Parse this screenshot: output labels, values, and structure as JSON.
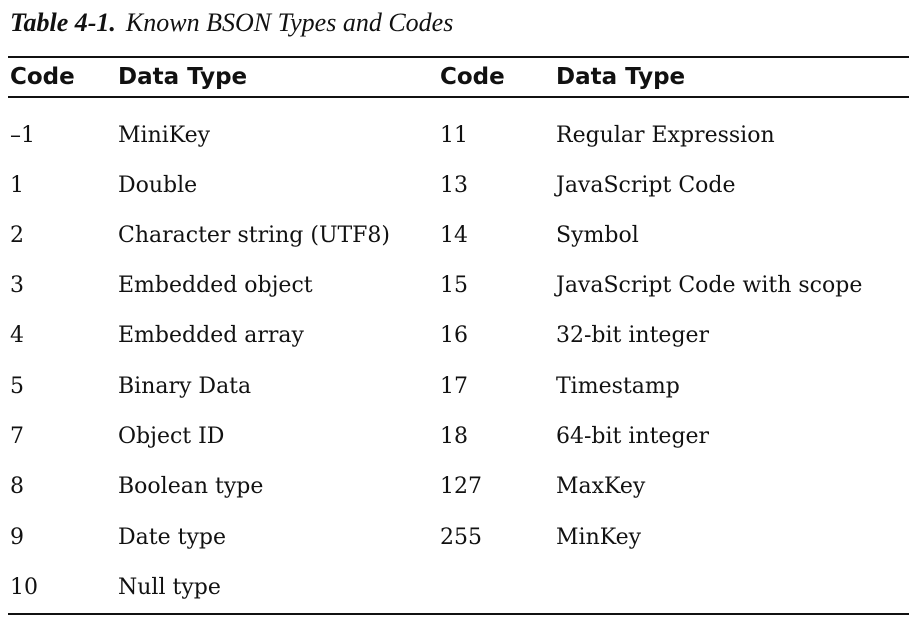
{
  "caption": {
    "label": "Table 4-1.",
    "title": "Known BSON Types and Codes"
  },
  "table": {
    "headers": [
      "Code",
      "Data Type",
      "Code",
      "Data Type"
    ],
    "rows": [
      [
        "–1",
        "MiniKey",
        "11",
        "Regular Expression"
      ],
      [
        "1",
        "Double",
        "13",
        "JavaScript Code"
      ],
      [
        "2",
        "Character string (UTF8)",
        "14",
        "Symbol"
      ],
      [
        "3",
        "Embedded object",
        "15",
        "JavaScript Code with scope"
      ],
      [
        "4",
        "Embedded array",
        "16",
        "32-bit integer"
      ],
      [
        "5",
        "Binary Data",
        "17",
        "Timestamp"
      ],
      [
        "7",
        "Object ID",
        "18",
        "64-bit integer"
      ],
      [
        "8",
        "Boolean type",
        "127",
        "MaxKey"
      ],
      [
        "9",
        "Date type",
        "255",
        "MinKey"
      ],
      [
        "10",
        "Null type",
        "",
        ""
      ]
    ]
  }
}
